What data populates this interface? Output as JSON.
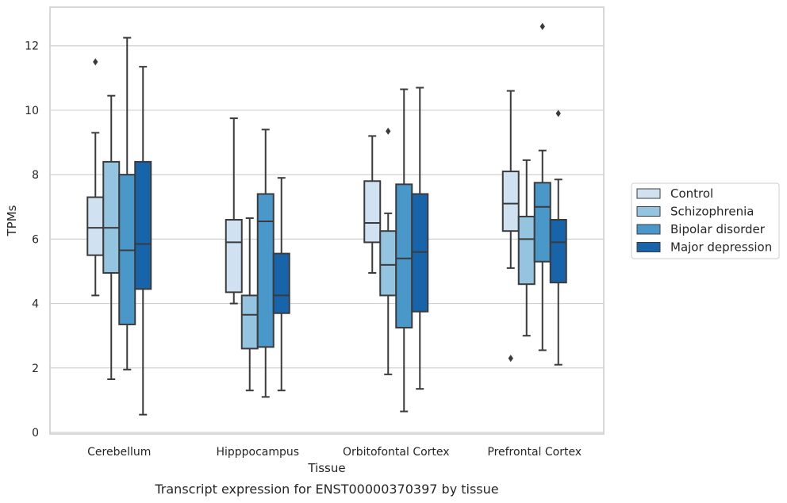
{
  "chart_data": {
    "type": "box",
    "title": "",
    "caption": "Transcript expression for ENST00000370397 by tissue",
    "xlabel": "Tissue",
    "ylabel": "TPMs",
    "ylim": [
      -0.05,
      13.2
    ],
    "yticks": [
      0,
      2,
      4,
      6,
      8,
      10,
      12
    ],
    "grid": "horizontal",
    "legend_position": "right",
    "categories": [
      "Cerebellum",
      "Hipppocampus",
      "Orbitofontal Cortex",
      "Prefrontal Cortex"
    ],
    "series": [
      {
        "name": "Control",
        "color": "#d0e1f2",
        "boxes": [
          {
            "whislo": 4.25,
            "q1": 5.5,
            "med": 6.35,
            "q3": 7.3,
            "whishi": 9.3,
            "fliers": [
              11.5
            ]
          },
          {
            "whislo": 4.0,
            "q1": 4.35,
            "med": 5.9,
            "q3": 6.6,
            "whishi": 9.75,
            "fliers": []
          },
          {
            "whislo": 4.95,
            "q1": 5.9,
            "med": 6.5,
            "q3": 7.8,
            "whishi": 9.2,
            "fliers": []
          },
          {
            "whislo": 5.1,
            "q1": 6.25,
            "med": 7.1,
            "q3": 8.1,
            "whishi": 10.6,
            "fliers": [
              2.3
            ]
          }
        ]
      },
      {
        "name": "Schizophrenia",
        "color": "#94c4df",
        "boxes": [
          {
            "whislo": 1.65,
            "q1": 4.95,
            "med": 6.35,
            "q3": 8.4,
            "whishi": 10.45,
            "fliers": []
          },
          {
            "whislo": 1.3,
            "q1": 2.6,
            "med": 3.65,
            "q3": 4.25,
            "whishi": 6.65,
            "fliers": []
          },
          {
            "whislo": 1.8,
            "q1": 4.25,
            "med": 5.2,
            "q3": 6.25,
            "whishi": 6.8,
            "fliers": [
              9.35
            ]
          },
          {
            "whislo": 3.0,
            "q1": 4.6,
            "med": 6.0,
            "q3": 6.7,
            "whishi": 8.45,
            "fliers": []
          }
        ]
      },
      {
        "name": "Bipolar disorder",
        "color": "#4a98c9",
        "boxes": [
          {
            "whislo": 1.95,
            "q1": 3.35,
            "med": 5.65,
            "q3": 8.0,
            "whishi": 12.25,
            "fliers": []
          },
          {
            "whislo": 1.1,
            "q1": 2.65,
            "med": 6.55,
            "q3": 7.4,
            "whishi": 9.4,
            "fliers": []
          },
          {
            "whislo": 0.65,
            "q1": 3.25,
            "med": 5.4,
            "q3": 7.7,
            "whishi": 10.65,
            "fliers": []
          },
          {
            "whislo": 2.55,
            "q1": 5.3,
            "med": 7.0,
            "q3": 7.75,
            "whishi": 8.75,
            "fliers": [
              12.6
            ]
          }
        ]
      },
      {
        "name": "Major depression",
        "color": "#1764ab",
        "boxes": [
          {
            "whislo": 0.55,
            "q1": 4.45,
            "med": 5.85,
            "q3": 8.4,
            "whishi": 11.35,
            "fliers": []
          },
          {
            "whislo": 1.3,
            "q1": 3.7,
            "med": 4.25,
            "q3": 5.55,
            "whishi": 7.9,
            "fliers": []
          },
          {
            "whislo": 1.35,
            "q1": 3.75,
            "med": 5.6,
            "q3": 7.4,
            "whishi": 10.7,
            "fliers": []
          },
          {
            "whislo": 2.1,
            "q1": 4.65,
            "med": 5.9,
            "q3": 6.6,
            "whishi": 7.85,
            "fliers": [
              9.9
            ]
          }
        ]
      }
    ]
  }
}
